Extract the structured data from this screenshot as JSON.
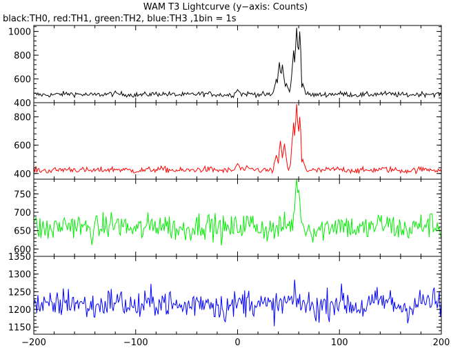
{
  "chart_data": {
    "type": "line",
    "title": "WAM T3 Lightcurve (y−axis: Counts)",
    "subtitle": "black:TH0, red:TH1, green:TH2, blue:TH3 ,1bin = 1s",
    "x_range": [
      -200,
      200
    ],
    "x_tick_labels": [
      "−200",
      "−100",
      "0",
      "100",
      "200"
    ],
    "x_tick_values": [
      -200,
      -100,
      0,
      100,
      200
    ],
    "grid": false,
    "panels": [
      {
        "name": "TH0",
        "color": "#000000",
        "ylim": [
          400,
          1050
        ],
        "y_tick_values": [
          400,
          600,
          800,
          1000
        ],
        "y_tick_labels": [
          "400",
          "600",
          "800",
          "1000"
        ],
        "baseline": 470,
        "noise": 18,
        "features": [
          {
            "x": 0,
            "y": 510
          },
          {
            "x": 38,
            "y": 600
          },
          {
            "x": 41,
            "y": 740
          },
          {
            "x": 44,
            "y": 720
          },
          {
            "x": 48,
            "y": 560
          },
          {
            "x": 55,
            "y": 840
          },
          {
            "x": 58,
            "y": 1030
          },
          {
            "x": 61,
            "y": 1000
          },
          {
            "x": 64,
            "y": 560
          }
        ]
      },
      {
        "name": "TH1",
        "color": "#ff0000",
        "ylim": [
          360,
          900
        ],
        "y_tick_values": [
          400,
          600,
          800
        ],
        "y_tick_labels": [
          "400",
          "600",
          "800"
        ],
        "baseline": 425,
        "noise": 18,
        "features": [
          {
            "x": 0,
            "y": 470
          },
          {
            "x": 38,
            "y": 530
          },
          {
            "x": 42,
            "y": 630
          },
          {
            "x": 46,
            "y": 610
          },
          {
            "x": 55,
            "y": 760
          },
          {
            "x": 58,
            "y": 890
          },
          {
            "x": 61,
            "y": 800
          },
          {
            "x": 64,
            "y": 500
          }
        ]
      },
      {
        "name": "TH2",
        "color": "#00ee00",
        "ylim": [
          580,
          790
        ],
        "y_tick_values": [
          600,
          650,
          700,
          750
        ],
        "y_tick_labels": [
          "600",
          "650",
          "700",
          "750"
        ],
        "baseline": 660,
        "noise": 30,
        "features": [
          {
            "x": 58,
            "y": 790
          },
          {
            "x": 60,
            "y": 760
          }
        ]
      },
      {
        "name": "TH3",
        "color": "#0000ff",
        "ylim": [
          1130,
          1350
        ],
        "y_tick_values": [
          1150,
          1200,
          1250,
          1300,
          1350
        ],
        "y_tick_labels": [
          "1150",
          "1200",
          "1250",
          "1300",
          "1350"
        ],
        "baseline": 1215,
        "noise": 35,
        "features": []
      }
    ]
  }
}
